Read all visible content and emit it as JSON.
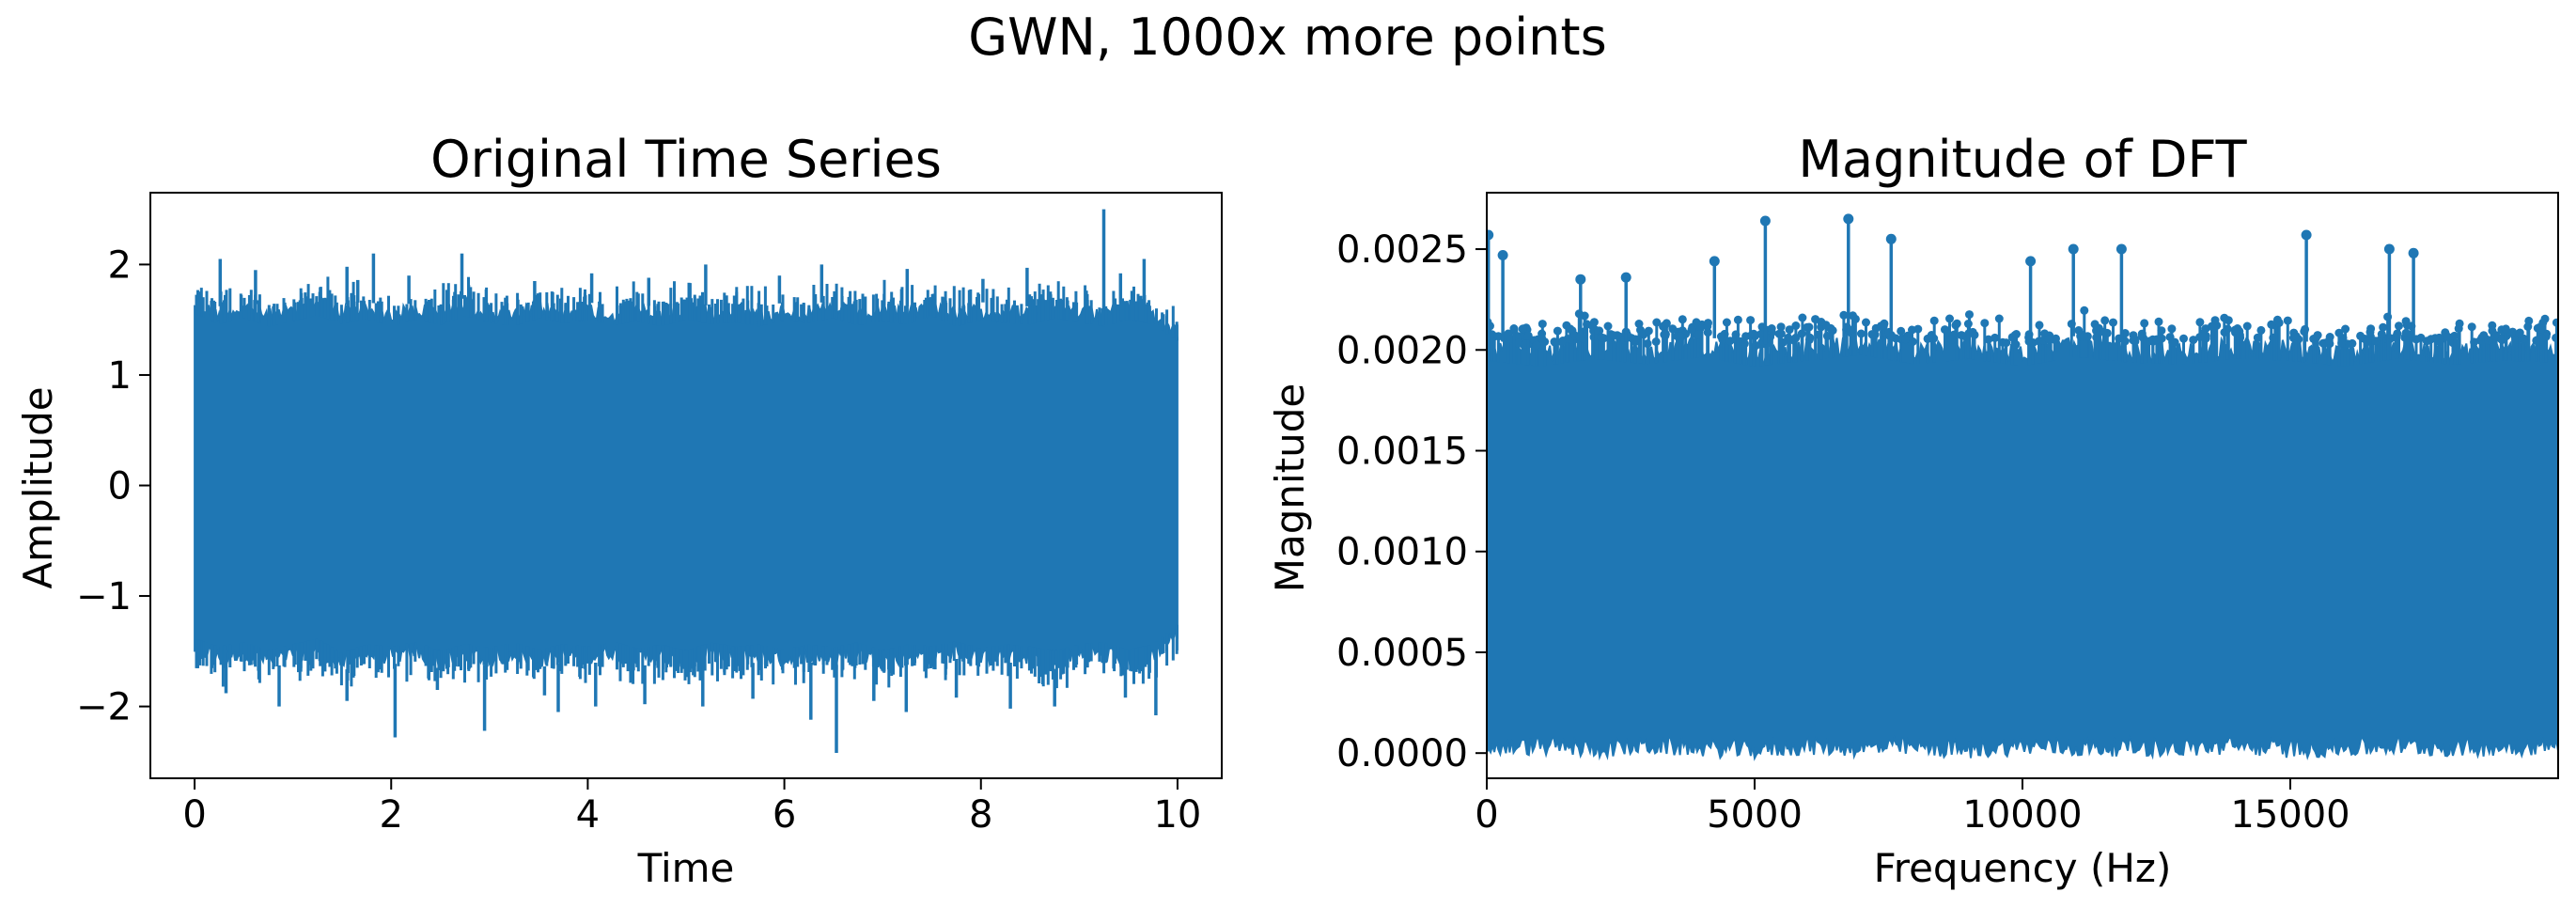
{
  "figure": {
    "title": "GWN, 1000x more points",
    "series_color": "#1f77b4"
  },
  "chart_data": [
    {
      "type": "line",
      "title": "Original Time Series",
      "xlabel": "Time",
      "ylabel": "Amplitude",
      "xlim": [
        -0.45,
        10.45
      ],
      "ylim": [
        -2.65,
        2.65
      ],
      "xticks": [
        0,
        2,
        4,
        6,
        8,
        10
      ],
      "yticks": [
        2,
        1,
        0,
        -1,
        -2
      ],
      "xtick_labels": [
        "0",
        "2",
        "4",
        "6",
        "8",
        "10"
      ],
      "ytick_labels": [
        "2",
        "1",
        "0",
        "−1",
        "−2"
      ],
      "grid": false,
      "series": [
        {
          "color": "#1f77b4",
          "envelope": {
            "x": [
              0,
              0.25,
              0.5,
              0.75,
              1,
              1.25,
              1.5,
              1.75,
              2,
              2.25,
              2.5,
              2.75,
              3,
              3.25,
              3.5,
              3.75,
              4,
              4.25,
              4.5,
              4.75,
              5,
              5.25,
              5.5,
              5.75,
              6,
              6.25,
              6.5,
              6.75,
              7,
              7.25,
              7.5,
              7.75,
              8,
              8.25,
              8.5,
              8.75,
              9,
              9.25,
              9.5,
              9.75,
              10
            ],
            "upper": [
              1.72,
              1.62,
              1.68,
              1.6,
              1.65,
              1.7,
              1.63,
              1.67,
              1.6,
              1.66,
              1.62,
              1.7,
              1.64,
              1.6,
              1.68,
              1.63,
              1.66,
              1.61,
              1.65,
              1.6,
              1.67,
              1.62,
              1.64,
              1.6,
              1.66,
              1.63,
              1.68,
              1.61,
              1.65,
              1.62,
              1.7,
              1.6,
              1.66,
              1.63,
              1.62,
              1.68,
              1.64,
              1.6,
              1.67,
              1.62,
              1.45
            ],
            "lower": [
              -1.55,
              -1.62,
              -1.58,
              -1.65,
              -1.6,
              -1.55,
              -1.68,
              -1.6,
              -1.62,
              -1.58,
              -1.66,
              -1.6,
              -1.63,
              -1.58,
              -1.65,
              -1.6,
              -1.62,
              -1.57,
              -1.64,
              -1.6,
              -1.66,
              -1.58,
              -1.62,
              -1.6,
              -1.65,
              -1.6,
              -1.63,
              -1.58,
              -1.66,
              -1.6,
              -1.62,
              -1.57,
              -1.64,
              -1.6,
              -1.62,
              -1.66,
              -1.6,
              -1.58,
              -1.65,
              -1.6,
              -1.4
            ]
          },
          "peaks": {
            "x": [
              0.26,
              0.62,
              1.55,
              1.66,
              1.82,
              2.18,
              2.72,
              3.46,
              4.04,
              4.62,
              5.2,
              5.95,
              6.38,
              7.25,
              8.02,
              8.47,
              9.25,
              9.42,
              9.66
            ],
            "y": [
              2.05,
              1.95,
              1.98,
              1.86,
              2.1,
              1.9,
              2.1,
              1.85,
              1.92,
              1.88,
              2.0,
              1.9,
              2.0,
              1.96,
              1.87,
              1.97,
              2.5,
              1.92,
              2.05
            ]
          },
          "troughs": {
            "x": [
              0.32,
              0.86,
              1.55,
              2.04,
              2.47,
              2.95,
              3.56,
              3.7,
              4.08,
              4.58,
              5.17,
              5.68,
              6.27,
              6.53,
              6.91,
              7.24,
              7.75,
              8.3,
              8.75,
              9.47,
              9.78
            ],
            "y": [
              -1.88,
              -2.0,
              -1.95,
              -2.28,
              -1.85,
              -2.22,
              -1.9,
              -2.05,
              -2.0,
              -1.98,
              -2.0,
              -1.93,
              -2.12,
              -2.42,
              -1.95,
              -2.05,
              -1.92,
              -2.02,
              -2.0,
              -1.92,
              -2.08
            ]
          }
        }
      ]
    },
    {
      "type": "line",
      "title": "Magnitude of DFT",
      "xlabel": "Frequency (Hz)",
      "ylabel": "Magnitude",
      "xlim": [
        0,
        20000
      ],
      "ylim": [
        -0.000125,
        0.00278
      ],
      "xticks": [
        0,
        5000,
        10000,
        15000
      ],
      "yticks": [
        0.0025,
        0.002,
        0.0015,
        0.001,
        0.0005,
        0
      ],
      "xtick_labels": [
        "0",
        "5000",
        "10000",
        "15000"
      ],
      "ytick_labels": [
        "0.0025",
        "0.0020",
        "0.0015",
        "0.0010",
        "0.0005",
        "0.0000"
      ],
      "grid": false,
      "series": [
        {
          "color": "#1f77b4",
          "envelope": {
            "x": [
              0,
              1000,
              2000,
              3000,
              4000,
              5000,
              6000,
              7000,
              8000,
              9000,
              10000,
              11000,
              12000,
              13000,
              14000,
              15000,
              16000,
              17000,
              18000,
              19000,
              20000
            ],
            "upper": [
              0.00205,
              0.00202,
              0.00206,
              0.00203,
              0.00207,
              0.00202,
              0.00205,
              0.00208,
              0.00203,
              0.00206,
              0.00202,
              0.00207,
              0.00204,
              0.00203,
              0.00206,
              0.00205,
              0.00202,
              0.00206,
              0.00203,
              0.00205,
              0.00204
            ],
            "lower": [
              -2e-05,
              -1e-05,
              -2.5e-05,
              -1e-05,
              -2e-05,
              -3e-05,
              -1e-05,
              -2e-05,
              -1.5e-05,
              -3e-05,
              -1e-05,
              -2e-05,
              -1.5e-05,
              -2e-05,
              -1e-05,
              -2.5e-05,
              -2e-05,
              -1e-05,
              -2e-05,
              -1.5e-05,
              -1e-05
            ]
          },
          "peaks": {
            "x": [
              30,
              300,
              1750,
              2600,
              4250,
              5200,
              6750,
              7550,
              10150,
              10950,
              11850,
              15300,
              16850,
              17300
            ],
            "y": [
              0.00257,
              0.00247,
              0.00235,
              0.00236,
              0.00244,
              0.00264,
              0.00265,
              0.00255,
              0.00244,
              0.0025,
              0.0025,
              0.00257,
              0.0025,
              0.00248
            ]
          }
        }
      ]
    }
  ]
}
